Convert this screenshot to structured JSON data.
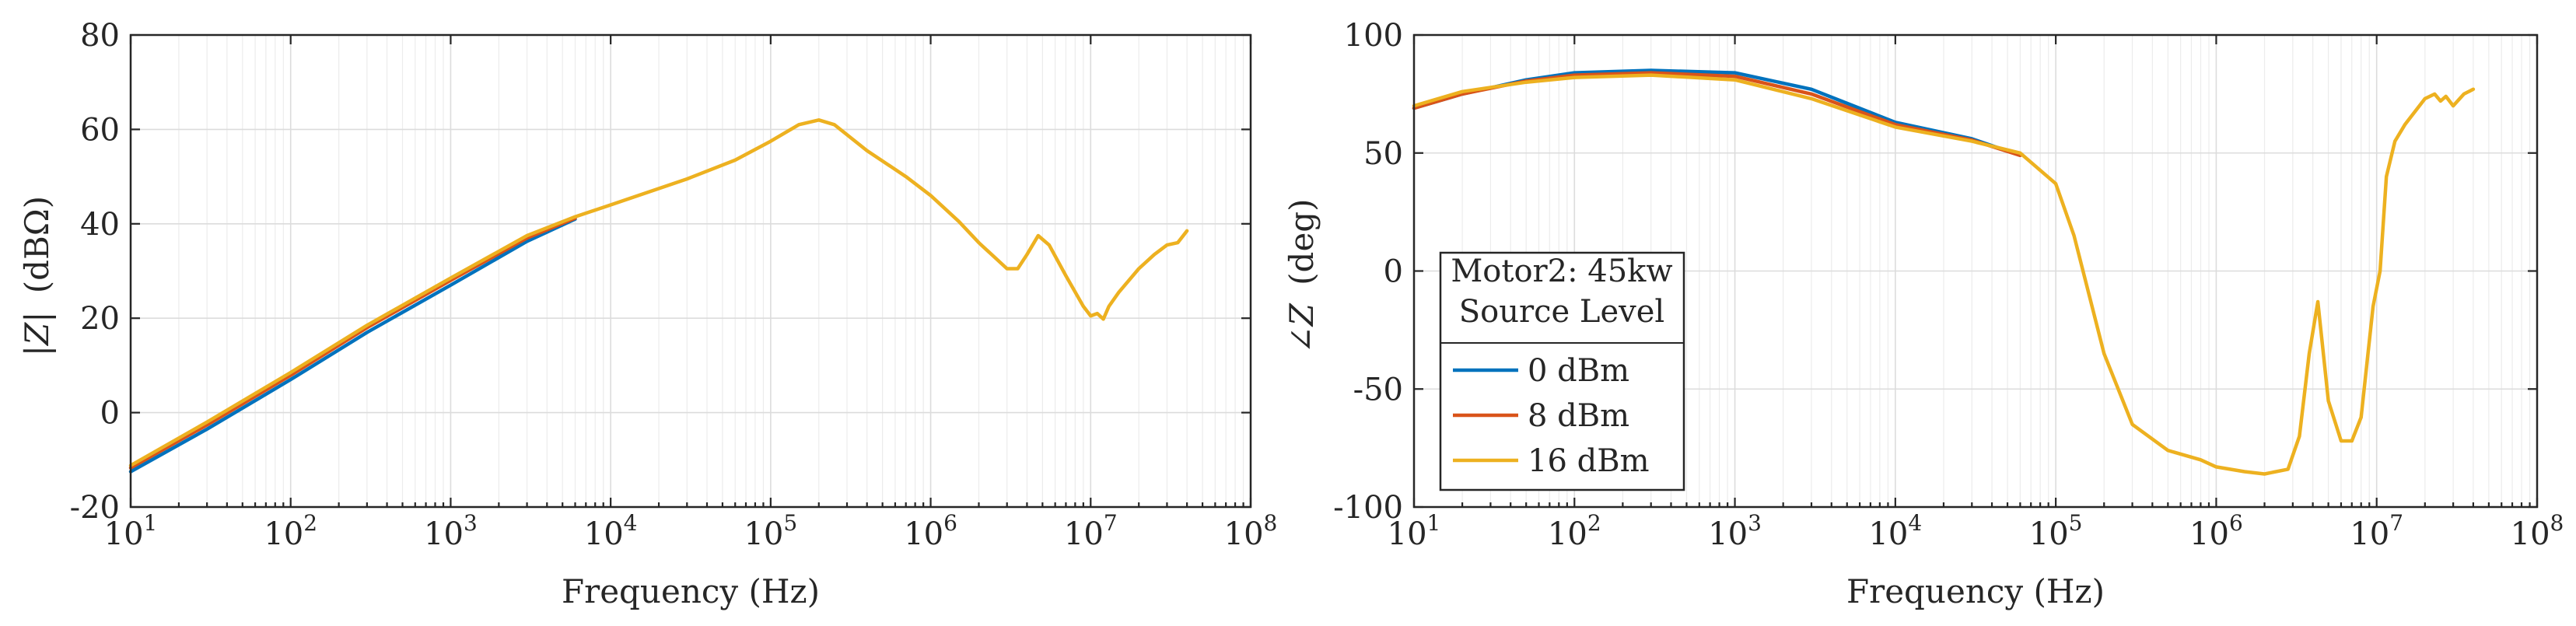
{
  "colors": {
    "series_0": "#0072BD",
    "series_8": "#D95319",
    "series_16": "#EDB120",
    "axis": "#262626",
    "grid": "#dcdcdc"
  },
  "chart_data": [
    {
      "type": "line",
      "x_scale": "log",
      "xlim": [
        10,
        100000000
      ],
      "ylim": [
        -20,
        80
      ],
      "xlabel": "Frequency (Hz)",
      "ylabel_main": "|Z|",
      "ylabel_unit": "(dBΩ)",
      "x_ticks": [
        {
          "base": "10",
          "exp": "1"
        },
        {
          "base": "10",
          "exp": "2"
        },
        {
          "base": "10",
          "exp": "3"
        },
        {
          "base": "10",
          "exp": "4"
        },
        {
          "base": "10",
          "exp": "5"
        },
        {
          "base": "10",
          "exp": "6"
        },
        {
          "base": "10",
          "exp": "7"
        },
        {
          "base": "10",
          "exp": "8"
        }
      ],
      "y_ticks": [
        "-20",
        "0",
        "20",
        "40",
        "60",
        "80"
      ],
      "grid": true,
      "series": [
        {
          "name": "0 dBm",
          "color": "#0072BD",
          "x": [
            10,
            30,
            100,
            300,
            1000,
            3000,
            6000
          ],
          "y": [
            -12.5,
            -3.5,
            7.0,
            17.0,
            27.0,
            36.3,
            41.0
          ]
        },
        {
          "name": "8 dBm",
          "color": "#D95319",
          "x": [
            10,
            30,
            100,
            300,
            1000,
            3000,
            6000
          ],
          "y": [
            -11.7,
            -2.6,
            7.9,
            18.0,
            28.0,
            37.0,
            41.2
          ]
        },
        {
          "name": "16 dBm",
          "color": "#EDB120",
          "x": [
            10,
            30,
            100,
            300,
            1000,
            3000,
            6000,
            10000,
            30000,
            60000,
            100000,
            150000,
            200000,
            250000,
            400000,
            700000,
            1000000,
            1500000,
            2000000,
            3000000,
            3500000,
            4000000,
            4700000,
            5500000,
            7000000,
            9000000,
            10000000,
            11000000,
            12000000,
            13000000,
            15000000,
            20000000,
            25000000,
            30000000,
            35000000,
            40000000
          ],
          "y": [
            -11.2,
            -2.0,
            8.5,
            18.5,
            28.5,
            37.5,
            41.5,
            44.0,
            49.5,
            53.5,
            57.5,
            61.0,
            62.0,
            61.0,
            55.5,
            50.0,
            46.0,
            40.5,
            36.0,
            30.5,
            30.5,
            33.5,
            37.5,
            35.5,
            29.0,
            22.5,
            20.5,
            21.0,
            19.8,
            22.5,
            25.5,
            30.5,
            33.5,
            35.5,
            36.0,
            38.5
          ]
        }
      ]
    },
    {
      "type": "line",
      "x_scale": "log",
      "xlim": [
        10,
        100000000
      ],
      "ylim": [
        -100,
        100
      ],
      "xlabel": "Frequency (Hz)",
      "ylabel_main": "∠Z",
      "ylabel_unit": "(deg)",
      "x_ticks": [
        {
          "base": "10",
          "exp": "1"
        },
        {
          "base": "10",
          "exp": "2"
        },
        {
          "base": "10",
          "exp": "3"
        },
        {
          "base": "10",
          "exp": "4"
        },
        {
          "base": "10",
          "exp": "5"
        },
        {
          "base": "10",
          "exp": "6"
        },
        {
          "base": "10",
          "exp": "7"
        },
        {
          "base": "10",
          "exp": "8"
        }
      ],
      "y_ticks": [
        "-100",
        "-50",
        "0",
        "50",
        "100"
      ],
      "grid": true,
      "legend": {
        "title_line1": "Motor2: 45kw",
        "title_line2": "Source Level",
        "placement": "lower-left",
        "entries": [
          "0 dBm",
          "8 dBm",
          "16 dBm"
        ]
      },
      "series": [
        {
          "name": "0 dBm",
          "color": "#0072BD",
          "x": [
            10,
            20,
            50,
            100,
            300,
            1000,
            3000,
            10000,
            30000,
            60000
          ],
          "y": [
            69,
            75,
            81,
            84,
            85,
            84,
            77,
            63,
            56,
            49
          ]
        },
        {
          "name": "8 dBm",
          "color": "#D95319",
          "x": [
            10,
            20,
            50,
            100,
            300,
            1000,
            3000,
            10000,
            30000,
            60000
          ],
          "y": [
            69,
            75,
            80.5,
            83,
            84,
            82.5,
            75,
            62,
            55.5,
            49
          ]
        },
        {
          "name": "16 dBm",
          "color": "#EDB120",
          "x": [
            10,
            20,
            50,
            100,
            300,
            1000,
            3000,
            10000,
            30000,
            60000,
            100000,
            130000,
            200000,
            300000,
            500000,
            800000,
            1000000,
            1500000,
            2000000,
            2800000,
            3300000,
            3800000,
            4300000,
            5000000,
            6000000,
            7000000,
            8000000,
            9500000,
            10500000,
            11500000,
            13000000,
            15000000,
            20000000,
            23000000,
            25000000,
            27000000,
            30000000,
            35000000,
            40000000
          ],
          "y": [
            70,
            76,
            80,
            82,
            83,
            81,
            73,
            61,
            55,
            50,
            37,
            15,
            -35,
            -65,
            -76,
            -80,
            -83,
            -85,
            -86,
            -84,
            -70,
            -35,
            -13,
            -55,
            -72,
            -72,
            -62,
            -15,
            0,
            40,
            55,
            62,
            73,
            75,
            72,
            74,
            70,
            75,
            77
          ]
        }
      ]
    }
  ]
}
